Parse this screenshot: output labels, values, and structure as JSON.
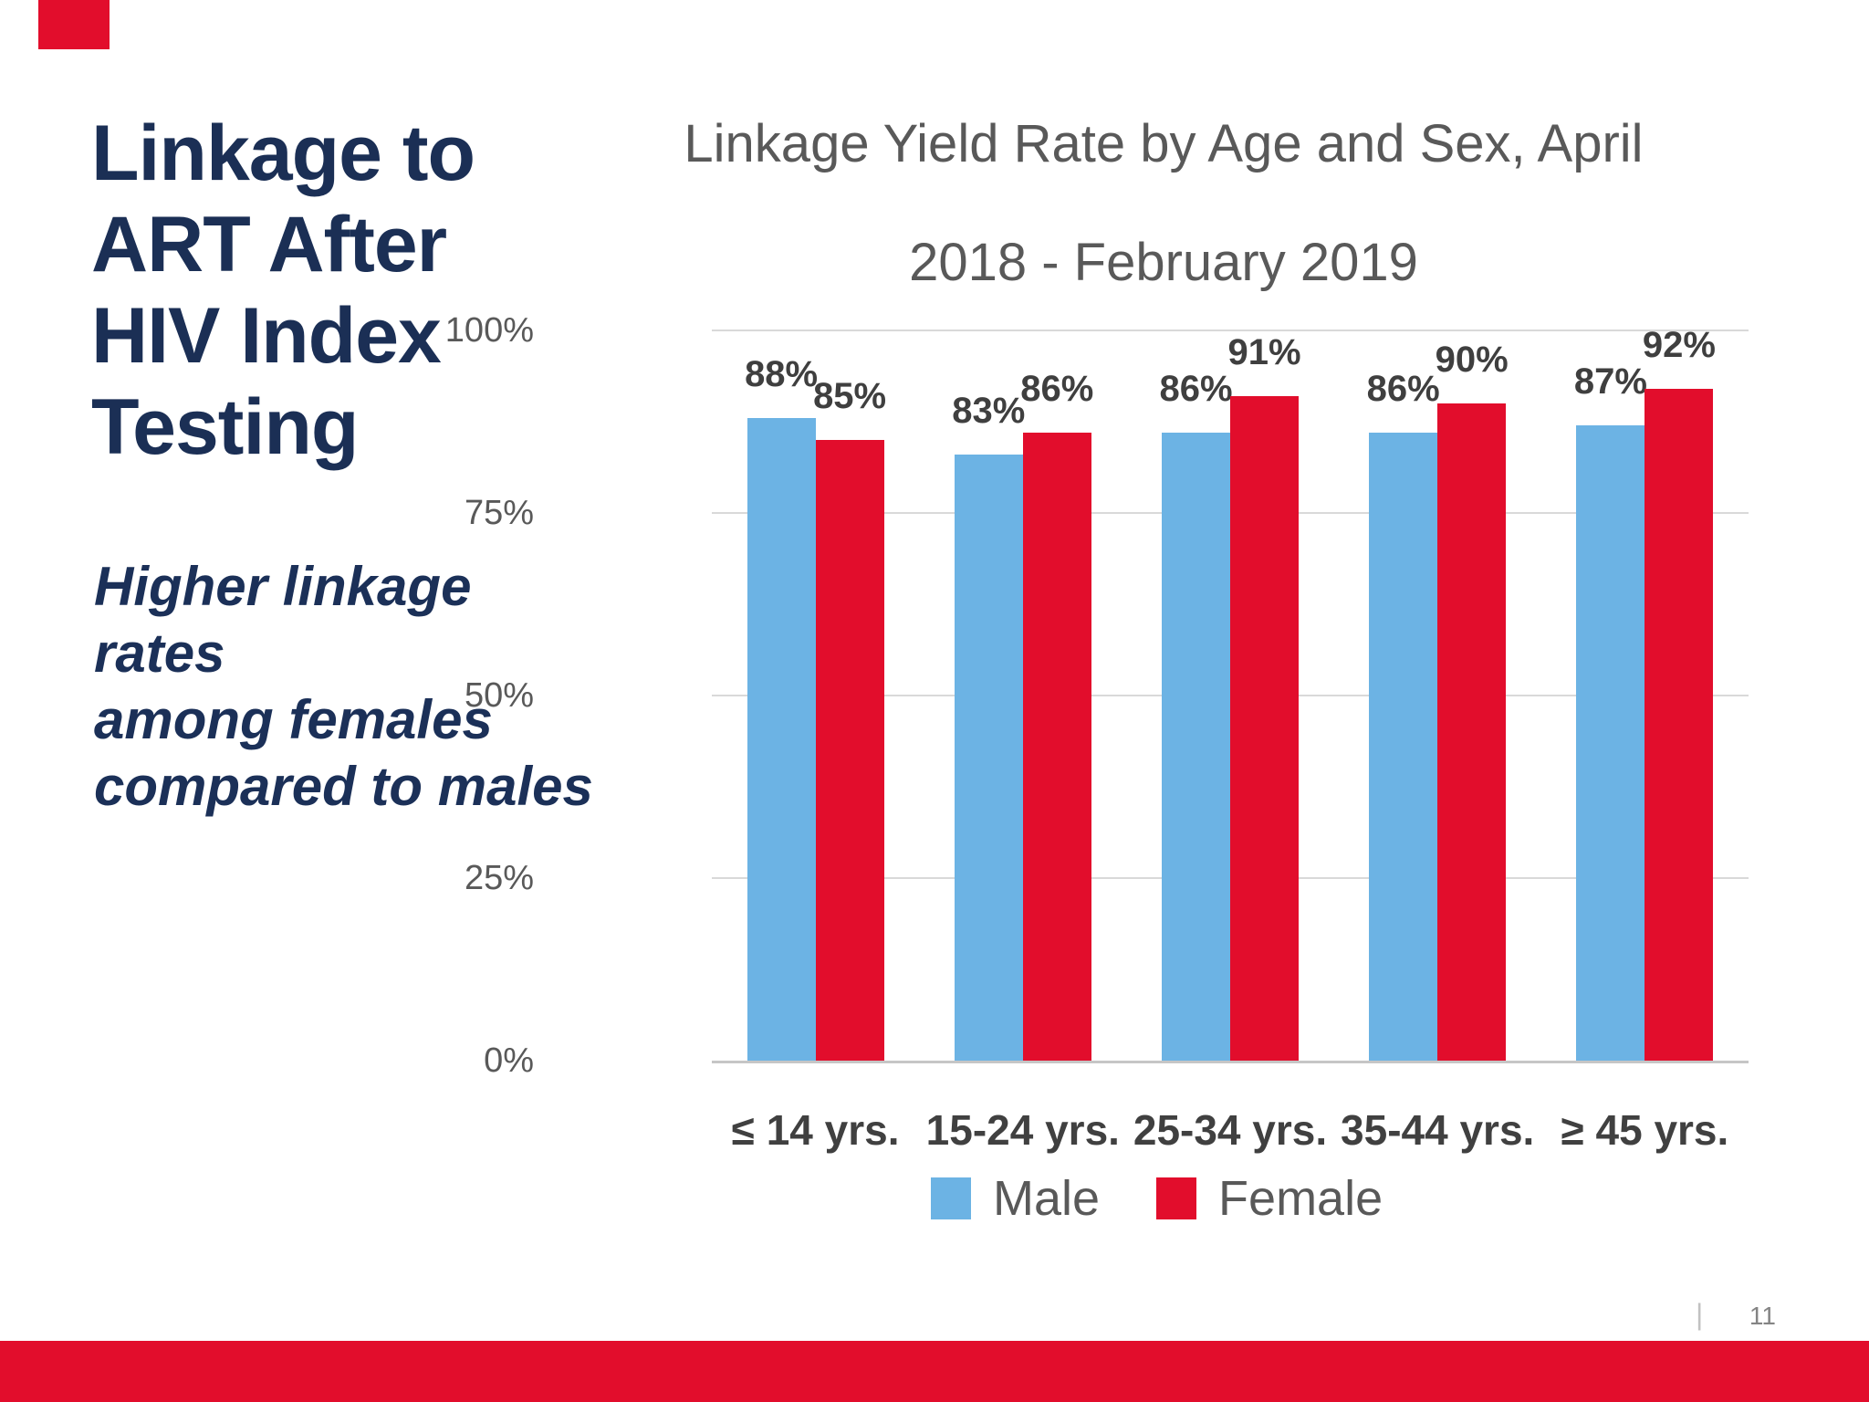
{
  "slide": {
    "title_lines": [
      "Linkage to",
      "ART After",
      "HIV Index",
      "Testing"
    ],
    "subtitle_lines": [
      "Higher linkage rates",
      "among females",
      "compared to males"
    ],
    "footer_divider": "|",
    "page_number": "11"
  },
  "colors": {
    "accent_red": "#E20D2C",
    "male_blue": "#6CB3E4",
    "title_navy": "#1B2F55",
    "chart_gray": "#595959",
    "label_gray": "#3F3F3F",
    "gridline_gray": "#D9D9D9"
  },
  "chart_data": {
    "type": "bar",
    "title_lines": [
      "Linkage Yield Rate by Age and Sex, April",
      "2018 - February 2019"
    ],
    "categories": [
      "≤ 14 yrs.",
      "15-24 yrs.",
      "25-34 yrs.",
      "35-44 yrs.",
      "≥ 45 yrs."
    ],
    "series": [
      {
        "name": "Male",
        "color": "#6CB3E4",
        "values": [
          88,
          83,
          86,
          86,
          87
        ]
      },
      {
        "name": "Female",
        "color": "#E20D2C",
        "values": [
          85,
          86,
          91,
          90,
          92
        ]
      }
    ],
    "value_suffix": "%",
    "xlabel": "",
    "ylabel": "",
    "ylim": [
      0,
      100
    ],
    "y_ticks": [
      0,
      25,
      50,
      75,
      100
    ],
    "y_tick_labels": [
      "0%",
      "25%",
      "50%",
      "75%",
      "100%"
    ],
    "grid": true,
    "legend_position": "bottom"
  }
}
